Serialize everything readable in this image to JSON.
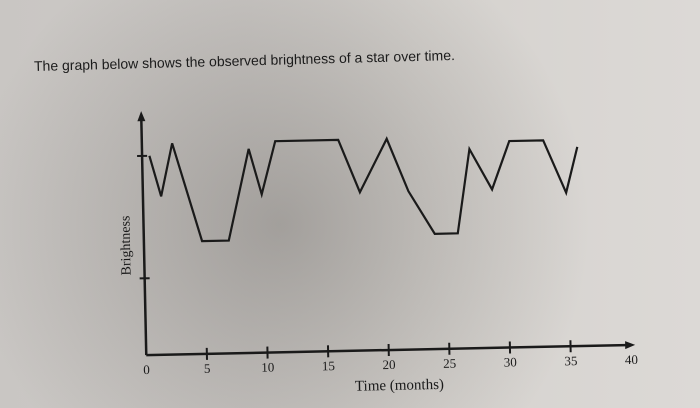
{
  "question": {
    "text": "The graph below shows the observed brightness of a star over time."
  },
  "chart_data": {
    "type": "line",
    "title": "",
    "xlabel": "Time (months)",
    "ylabel": "Brightness",
    "xlim": [
      0,
      40
    ],
    "ylim": [
      0,
      10
    ],
    "x_ticks": [
      0,
      5,
      10,
      15,
      20,
      25,
      30,
      35,
      40
    ],
    "y_ticks": [
      3.2,
      8.3
    ],
    "y_tick_labels_shown": false,
    "grid": false,
    "legend": "none",
    "line_color": "#1a1a1a",
    "series": [
      {
        "x": [
          0.6,
          1.5,
          2.5,
          4.8,
          7.0,
          8.8,
          9.8,
          11.0,
          16.2,
          17.9,
          20.2,
          21.9,
          24.0,
          25.9,
          27.0,
          28.8,
          30.3,
          33.1,
          34.9,
          35.9
        ],
        "y": [
          8.3,
          6.6,
          8.8,
          4.7,
          4.7,
          8.5,
          6.6,
          8.8,
          8.8,
          6.6,
          8.8,
          6.6,
          4.8,
          4.8,
          8.3,
          6.6,
          8.6,
          8.6,
          6.4,
          8.3
        ]
      }
    ]
  }
}
